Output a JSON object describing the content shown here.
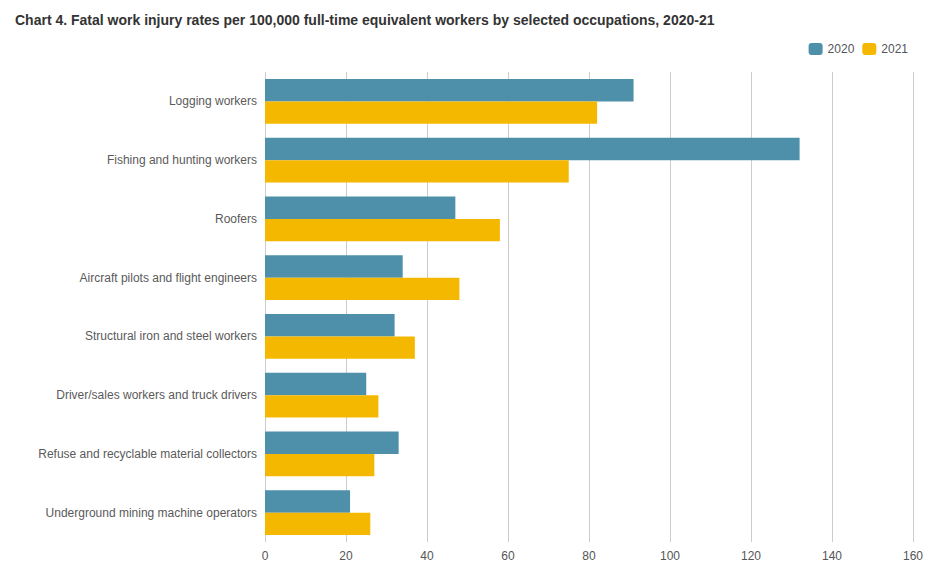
{
  "chart_data": {
    "type": "bar",
    "orientation": "horizontal",
    "title": "Chart 4. Fatal work injury rates per 100,000 full-time equivalent workers by selected occupations, 2020-21",
    "categories": [
      "Logging workers",
      "Fishing and hunting workers",
      "Roofers",
      "Aircraft pilots and flight engineers",
      "Structural iron and steel workers",
      "Driver/sales workers and truck drivers",
      "Refuse and recyclable material collectors",
      "Underground mining machine operators"
    ],
    "series": [
      {
        "name": "2020",
        "color": "#4e8faa",
        "values": [
          91,
          132,
          47,
          34,
          32,
          25,
          33,
          21
        ]
      },
      {
        "name": "2021",
        "color": "#f5b800",
        "values": [
          82,
          75,
          58,
          48,
          37,
          28,
          27,
          26
        ]
      }
    ],
    "xlim": [
      0,
      160
    ],
    "xticks": [
      0,
      20,
      40,
      60,
      80,
      100,
      120,
      140,
      160
    ],
    "grid": true,
    "legend": "upper right"
  }
}
